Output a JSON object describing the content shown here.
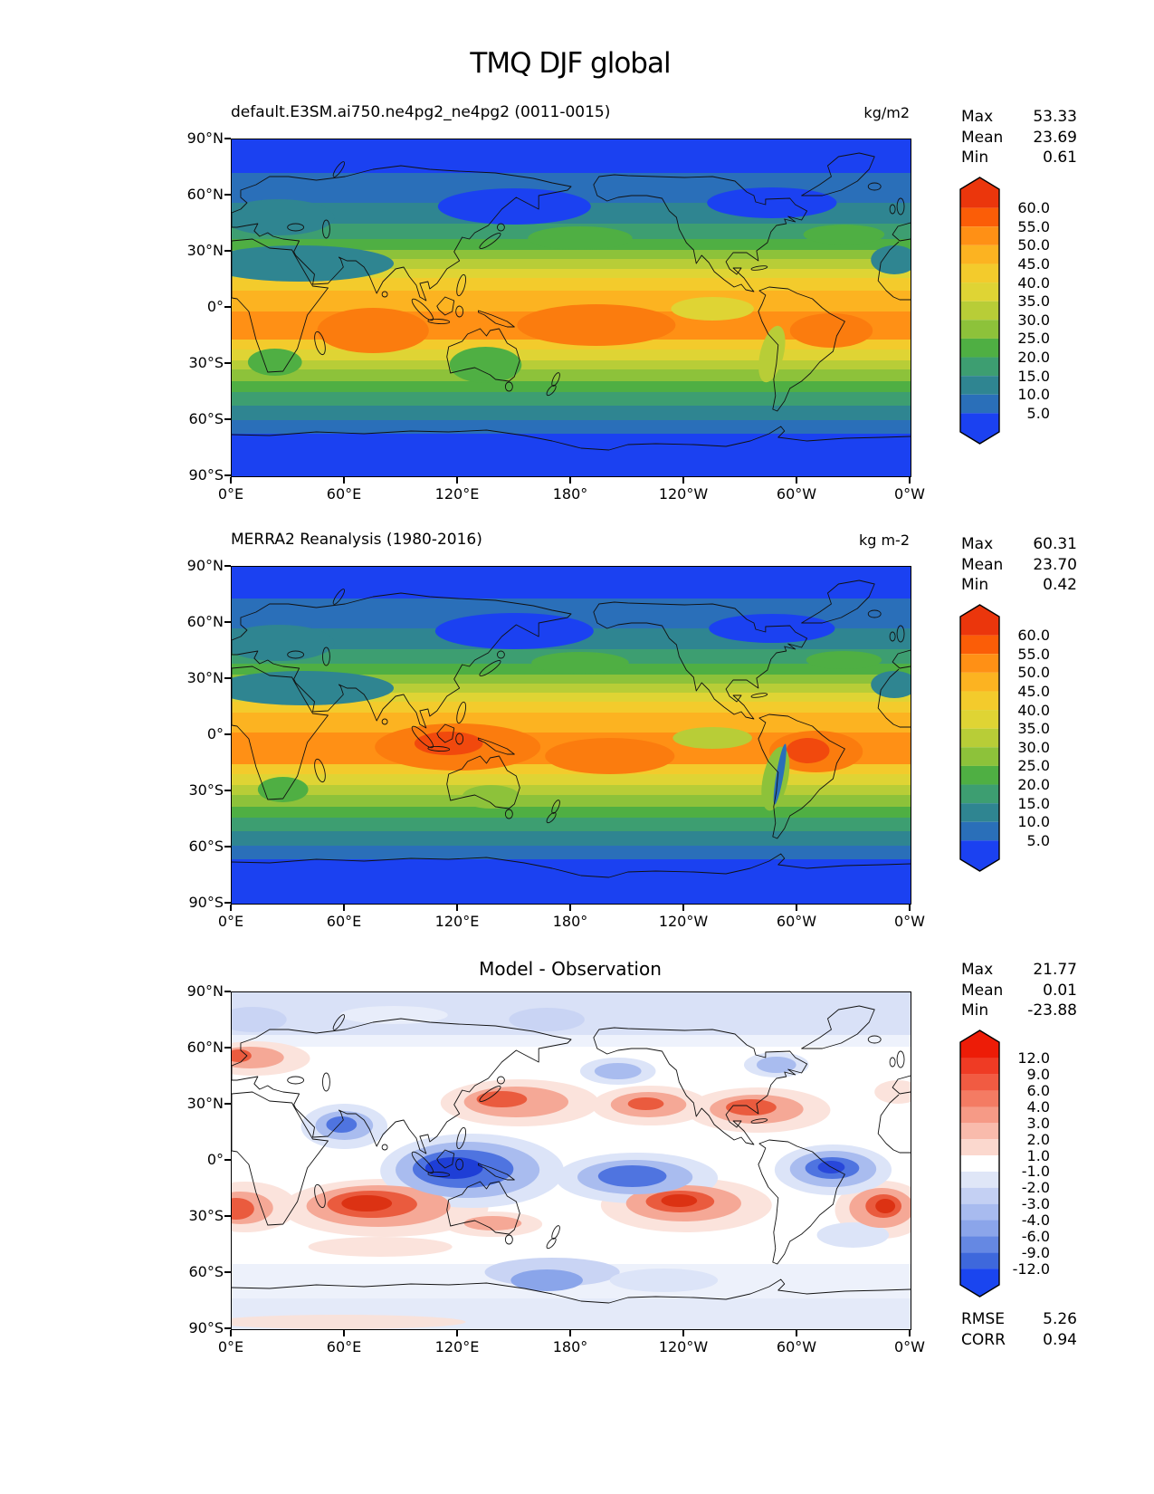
{
  "page_title": "TMQ DJF global",
  "panels": [
    {
      "id": "model",
      "subtitle": "default.E3SM.ai750.ne4pg2_ne4pg2 (0011-0015)",
      "units": "kg/m2",
      "stats": [
        [
          "Max",
          "53.33"
        ],
        [
          "Mean",
          "23.69"
        ],
        [
          "Min",
          "0.61"
        ]
      ],
      "colorbar_ticks": [
        "60.0",
        "55.0",
        "50.0",
        "45.0",
        "40.0",
        "35.0",
        "30.0",
        "25.0",
        "20.0",
        "15.0",
        "10.0",
        "5.0"
      ]
    },
    {
      "id": "obs",
      "subtitle": "MERRA2 Reanalysis (1980-2016)",
      "units": "kg m-2",
      "stats": [
        [
          "Max",
          "60.31"
        ],
        [
          "Mean",
          "23.70"
        ],
        [
          "Min",
          "0.42"
        ]
      ],
      "colorbar_ticks": [
        "60.0",
        "55.0",
        "50.0",
        "45.0",
        "40.0",
        "35.0",
        "30.0",
        "25.0",
        "20.0",
        "15.0",
        "10.0",
        "5.0"
      ]
    },
    {
      "id": "diff",
      "subtitle": "Model - Observation",
      "stats": [
        [
          "Max",
          "21.77"
        ],
        [
          "Mean",
          "0.01"
        ],
        [
          "Min",
          "-23.88"
        ]
      ],
      "colorbar_ticks": [
        "12.0",
        "9.0",
        "6.0",
        "4.0",
        "3.0",
        "2.0",
        "1.0",
        "-1.0",
        "-2.0",
        "-3.0",
        "-4.0",
        "-6.0",
        "-9.0",
        "-12.0"
      ],
      "metrics": [
        [
          "RMSE",
          "5.26"
        ],
        [
          "CORR",
          "0.94"
        ]
      ]
    }
  ],
  "axes": {
    "x_tick_labels": [
      "0°E",
      "60°E",
      "120°E",
      "180°",
      "120°W",
      "60°W",
      "0°W"
    ],
    "y_tick_labels": [
      "90°N",
      "60°N",
      "30°N",
      "0°",
      "30°S",
      "60°S",
      "90°S"
    ]
  },
  "colors": {
    "rainbow_colorbar": [
      "#EB360C",
      "#FB5D07",
      "#FF9015",
      "#FCB321",
      "#F3CB2C",
      "#DFD434",
      "#B8CD37",
      "#8DC23A",
      "#4FAF43",
      "#3D9E71",
      "#2F8591",
      "#2A6FB9",
      "#1B41F1"
    ],
    "diverging_colorbar": [
      "#ED1C07",
      "#EF3B24",
      "#F15B42",
      "#F47B63",
      "#F69A86",
      "#F9BBAC",
      "#FBD8CE",
      "#FFFFFF",
      "#DFE6F7",
      "#C4D0F3",
      "#A8BBEF",
      "#8BA5EA",
      "#6588E3",
      "#3E68DC",
      "#1A45EF"
    ]
  },
  "chart_data": {
    "type": "heatmap",
    "subtype": "global lat-lon filled contour maps, 3 stacked panels",
    "title": "TMQ DJF global",
    "x_axis": {
      "ticks": [
        "0°E",
        "60°E",
        "120°E",
        "180°",
        "120°W",
        "60°W",
        "0°W"
      ],
      "range_deg_lon": [
        0,
        360
      ]
    },
    "y_axis": {
      "ticks": [
        "90°N",
        "60°N",
        "30°N",
        "0°",
        "30°S",
        "60°S",
        "90°S"
      ],
      "range_deg_lat": [
        -90,
        90
      ]
    },
    "panels": [
      {
        "title": "default.E3SM.ai750.ne4pg2_ne4pg2 (0011-0015)",
        "units": "kg/m2",
        "max": 53.33,
        "mean": 23.69,
        "min": 0.61,
        "contour_levels": [
          5,
          10,
          15,
          20,
          25,
          30,
          35,
          40,
          45,
          50,
          55,
          60
        ],
        "colormap": "blue-teal-green-yellow-orange-red rainbow, extended both ends"
      },
      {
        "title": "MERRA2 Reanalysis (1980-2016)",
        "units": "kg m-2",
        "max": 60.31,
        "mean": 23.7,
        "min": 0.42,
        "contour_levels": [
          5,
          10,
          15,
          20,
          25,
          30,
          35,
          40,
          45,
          50,
          55,
          60
        ],
        "colormap": "blue-teal-green-yellow-orange-red rainbow, extended both ends"
      },
      {
        "title": "Model - Observation",
        "max": 21.77,
        "mean": 0.01,
        "min": -23.88,
        "contour_levels": [
          -12,
          -9,
          -6,
          -4,
          -3,
          -2,
          -1,
          1,
          2,
          3,
          4,
          6,
          9,
          12
        ],
        "colormap": "blue-white-red diverging, extended both ends",
        "rmse": 5.26,
        "corr": 0.94
      }
    ]
  }
}
